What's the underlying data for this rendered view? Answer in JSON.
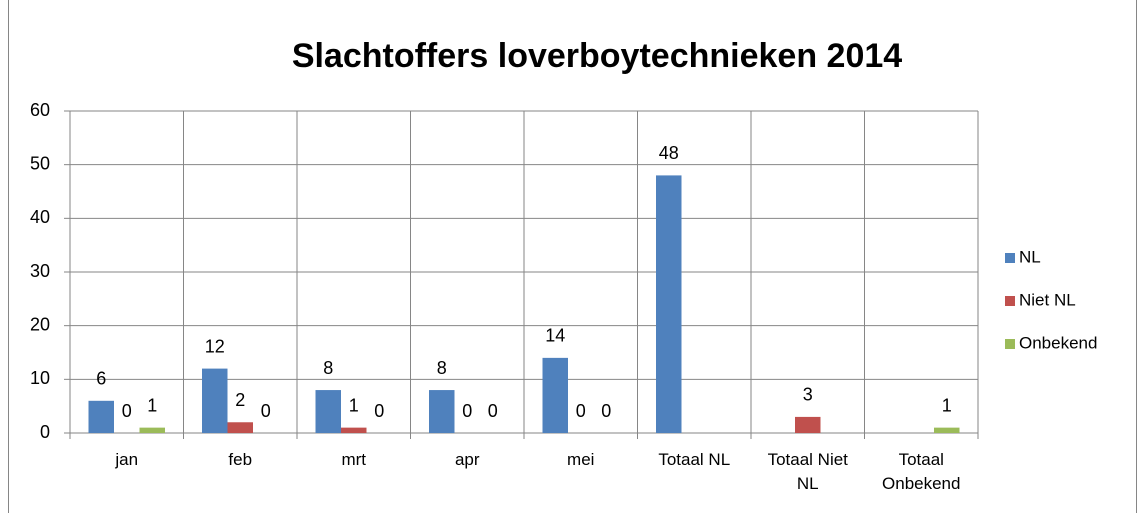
{
  "chart_data": {
    "type": "bar",
    "title": "Slachtoffers loverboytechnieken 2014",
    "categories": [
      "jan",
      "feb",
      "mrt",
      "apr",
      "mei",
      "Totaal NL",
      "Totaal Niet NL",
      "Totaal Onbekend"
    ],
    "series": [
      {
        "name": "NL",
        "color": "#4f81bd",
        "values": [
          6,
          12,
          8,
          8,
          14,
          48,
          null,
          null
        ]
      },
      {
        "name": "Niet NL",
        "color": "#c0504d",
        "values": [
          0,
          2,
          1,
          0,
          0,
          null,
          3,
          null
        ]
      },
      {
        "name": "Onbekend",
        "color": "#9bbb59",
        "values": [
          1,
          0,
          0,
          0,
          0,
          null,
          null,
          1
        ]
      }
    ],
    "ylim": [
      0,
      60
    ],
    "yticks": [
      0,
      10,
      20,
      30,
      40,
      50,
      60
    ],
    "grid": true,
    "legend": "right"
  }
}
